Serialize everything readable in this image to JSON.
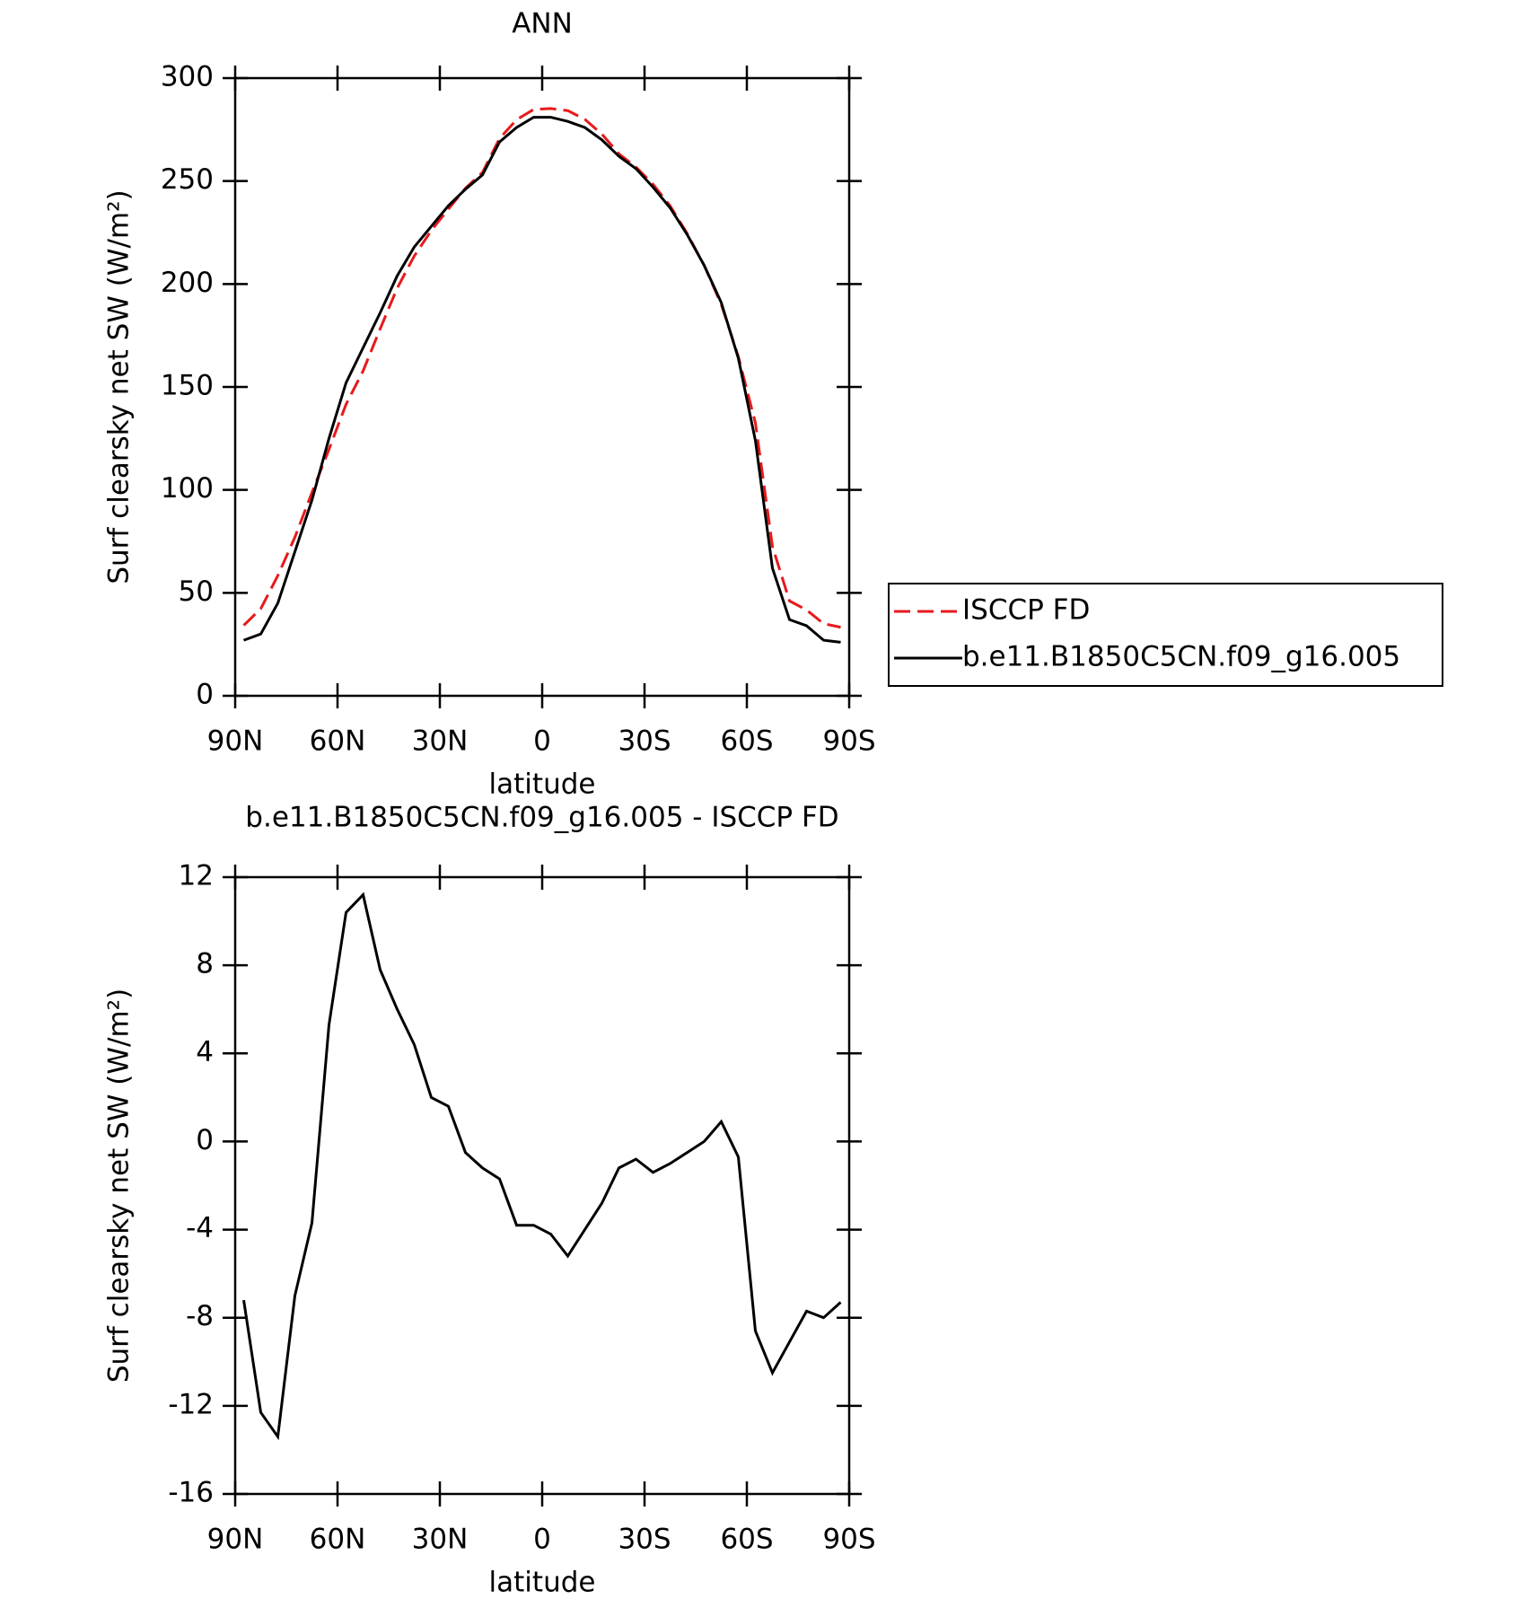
{
  "chart_data": [
    {
      "type": "line",
      "title": "ANN",
      "xlabel": "latitude",
      "ylabel": "Surf clearsky net SW (W/m²)",
      "x": [
        87.5,
        82.5,
        77.5,
        72.5,
        67.5,
        62.5,
        57.5,
        52.5,
        47.5,
        42.5,
        37.5,
        32.5,
        27.5,
        22.5,
        17.5,
        12.5,
        7.5,
        2.5,
        -2.5,
        -7.5,
        -12.5,
        -17.5,
        -22.5,
        -27.5,
        -32.5,
        -37.5,
        -42.5,
        -47.5,
        -52.5,
        -57.5,
        -62.5,
        -67.5,
        -72.5,
        -77.5,
        -82.5,
        -87.5
      ],
      "series": [
        {
          "name": "ISCCP FD",
          "color": "#e8191b",
          "dash": true,
          "values": [
            34.2,
            42.3,
            58.4,
            77,
            98.7,
            119.7,
            141.6,
            157.8,
            178.2,
            198,
            213.6,
            226,
            236.4,
            246.5,
            254.2,
            270.7,
            279.8,
            284.8,
            285.2,
            284.2,
            280,
            272.8,
            263.2,
            256.8,
            248.4,
            238,
            224.5,
            209,
            190.1,
            164.7,
            132.6,
            72.5,
            46.1,
            41.7,
            35,
            33.3
          ]
        },
        {
          "name": "b.e11.B1850C5CN.f09_g16.005",
          "color": "#000000",
          "dash": false,
          "values": [
            27,
            30,
            45,
            70,
            95,
            125,
            152,
            169,
            186,
            204,
            218,
            228,
            238,
            246,
            253,
            269,
            276,
            281,
            281,
            279,
            276,
            270,
            262,
            256,
            247,
            237,
            224,
            209,
            191,
            164,
            124,
            62,
            37,
            34,
            27,
            26
          ]
        }
      ],
      "xlim": [
        90,
        -90
      ],
      "xticks": [
        {
          "value": 90,
          "label": "90N"
        },
        {
          "value": 60,
          "label": "60N"
        },
        {
          "value": 30,
          "label": "30N"
        },
        0,
        {
          "value": -30,
          "label": "30S"
        },
        {
          "value": -60,
          "label": "60S"
        },
        {
          "value": -90,
          "label": "90S"
        }
      ],
      "ylim": [
        0,
        300
      ],
      "yticks": [
        0,
        50,
        100,
        150,
        200,
        250,
        300
      ],
      "legend": "right"
    },
    {
      "type": "line",
      "title": "b.e11.B1850C5CN.f09_g16.005 - ISCCP FD",
      "xlabel": "latitude",
      "ylabel": "Surf clearsky net SW (W/m²)",
      "x": [
        87.5,
        82.5,
        77.5,
        72.5,
        67.5,
        62.5,
        57.5,
        52.5,
        47.5,
        42.5,
        37.5,
        32.5,
        27.5,
        22.5,
        17.5,
        12.5,
        7.5,
        2.5,
        -2.5,
        -7.5,
        -12.5,
        -17.5,
        -22.5,
        -27.5,
        -32.5,
        -37.5,
        -42.5,
        -47.5,
        -52.5,
        -57.5,
        -62.5,
        -67.5,
        -72.5,
        -77.5,
        -82.5,
        -87.5
      ],
      "series": [
        {
          "color": "#000000",
          "dash": false,
          "values": [
            -7.2,
            -12.3,
            -13.4,
            -7,
            -3.7,
            5.3,
            10.4,
            11.2,
            7.8,
            6,
            4.4,
            2,
            1.6,
            -0.5,
            -1.2,
            -1.7,
            -3.8,
            -3.8,
            -4.2,
            -5.2,
            -4,
            -2.8,
            -1.2,
            -0.8,
            -1.4,
            -1,
            -0.5,
            0,
            0.9,
            -0.7,
            -8.6,
            -10.5,
            -9.1,
            -7.7,
            -8,
            -7.3
          ]
        }
      ],
      "xlim": [
        90,
        -90
      ],
      "xticks": [
        {
          "value": 90,
          "label": "90N"
        },
        {
          "value": 60,
          "label": "60N"
        },
        {
          "value": 30,
          "label": "30N"
        },
        0,
        {
          "value": -30,
          "label": "30S"
        },
        {
          "value": -60,
          "label": "60S"
        },
        {
          "value": -90,
          "label": "90S"
        }
      ],
      "ylim": [
        -16,
        12
      ],
      "yticks": [
        -16,
        -12,
        -8,
        -4,
        0,
        4,
        8,
        12
      ]
    }
  ]
}
